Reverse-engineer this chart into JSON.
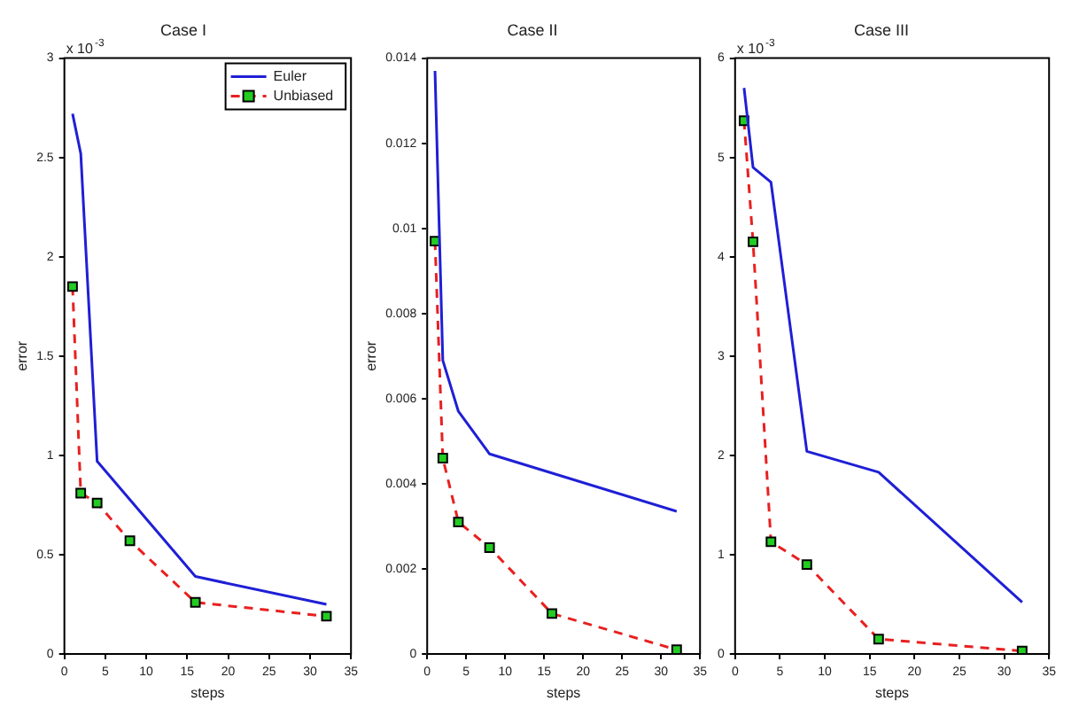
{
  "chart_data": [
    {
      "type": "line",
      "title": "Case I",
      "xlabel": "steps",
      "ylabel": "error",
      "annotations": [
        "x 10$^{-3}$"
      ],
      "xlim": [
        0,
        35
      ],
      "xticks": [
        0,
        5,
        10,
        15,
        20,
        25,
        30,
        35
      ],
      "ylim": [
        0,
        3
      ],
      "yticks": [
        0,
        0.5,
        1,
        1.5,
        2,
        2.5,
        3
      ],
      "grid": false,
      "legend": "top right",
      "series": [
        {
          "name": "Euler",
          "color": "#1f1fd6",
          "marker": "none",
          "line_style": "solid",
          "x": [
            1,
            2,
            4,
            16,
            32
          ],
          "values": [
            2.72,
            2.52,
            0.97,
            0.39,
            0.25
          ]
        },
        {
          "name": "Unbiased",
          "color": "#e82020",
          "marker": "square",
          "line_style": "dashed",
          "x": [
            1,
            2,
            4,
            8,
            16,
            32
          ],
          "values": [
            1.85,
            0.81,
            0.76,
            0.57,
            0.26,
            0.19
          ]
        }
      ]
    },
    {
      "type": "line",
      "title": "Case II",
      "xlabel": "steps",
      "ylabel": "error",
      "xlim": [
        0,
        35
      ],
      "xticks": [
        0,
        5,
        10,
        15,
        20,
        25,
        30,
        35
      ],
      "ylim": [
        0,
        0.014
      ],
      "yticks": [
        0,
        0.002,
        0.004,
        0.006,
        0.008,
        0.01,
        0.012,
        0.014
      ],
      "grid": false,
      "series": [
        {
          "color": "#1f1fd6",
          "marker": "none",
          "line_style": "solid",
          "x": [
            1,
            2,
            4,
            8,
            32
          ],
          "values": [
            0.0137,
            0.0069,
            0.0057,
            0.0047,
            0.00335
          ]
        },
        {
          "color": "#e82020",
          "marker": "square",
          "line_style": "dashed",
          "x": [
            1,
            2,
            4,
            8,
            16,
            32
          ],
          "values": [
            0.0097,
            0.0046,
            0.0031,
            0.0025,
            0.00095,
            0.0001
          ]
        }
      ]
    },
    {
      "type": "line",
      "title": "Case III",
      "xlabel": "steps",
      "annotations": [
        "x 10$^{-3}$"
      ],
      "xlim": [
        0,
        35
      ],
      "xticks": [
        0,
        5,
        10,
        15,
        20,
        25,
        30,
        35
      ],
      "ylim": [
        0,
        6
      ],
      "yticks": [
        0,
        1,
        2,
        3,
        4,
        5,
        6
      ],
      "grid": false,
      "series": [
        {
          "color": "#1f1fd6",
          "marker": "none",
          "line_style": "solid",
          "x": [
            1,
            2,
            4,
            8,
            16,
            32
          ],
          "values": [
            5.7,
            4.9,
            4.75,
            2.04,
            1.83,
            0.52
          ]
        },
        {
          "color": "#e82020",
          "marker": "square",
          "line_style": "dashed",
          "x": [
            1,
            2,
            4,
            8,
            16,
            32
          ],
          "values": [
            5.37,
            4.15,
            1.13,
            0.9,
            0.15,
            0.03
          ]
        }
      ]
    }
  ]
}
